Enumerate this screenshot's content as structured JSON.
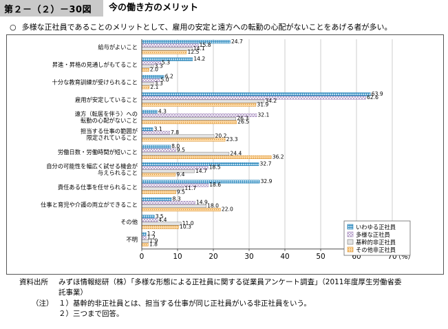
{
  "header": {
    "figure_label": "第２－（２）－30図",
    "title": "今の働き方のメリット"
  },
  "summary": {
    "marker": "○",
    "text": "多様な正社員であることのメリットとして、雇用の安定と遠方への転勤の心配がないことをあげる者が多い。"
  },
  "chart_data": {
    "type": "bar",
    "orientation": "horizontal",
    "categories": [
      [
        "給与がよいこと"
      ],
      [
        "昇進・昇格の見通しがもてること"
      ],
      [
        "十分な教育訓練が受けられること"
      ],
      [
        "雇用が安定していること"
      ],
      [
        "遠方（転居を伴う）への",
        "転勤の心配がないこと"
      ],
      [
        "担当する仕事の範囲が",
        "限定されていること"
      ],
      [
        "労働日数・労働時間が短いこと"
      ],
      [
        "自分の可能性を幅広く試せる機会が",
        "与えられること"
      ],
      [
        "責任ある仕事を任せられること"
      ],
      [
        "仕事と育児や介護の両立ができること"
      ],
      [
        "その他"
      ],
      [
        "不明"
      ]
    ],
    "series": [
      {
        "name": "いわゆる正社員",
        "fill": "#bfe0f2",
        "stroke": "#1e7fb6",
        "pattern": "grid",
        "values": [
          24.7,
          14.2,
          6.2,
          63.9,
          4.3,
          3.1,
          8.0,
          32.7,
          32.9,
          8.3,
          3.5,
          1.2
        ]
      },
      {
        "name": "多様な正社員",
        "fill": "#ffffff",
        "stroke": "#9a7ab5",
        "pattern": "cross",
        "values": [
          15.8,
          5.3,
          5.0,
          62.6,
          32.1,
          7.8,
          9.5,
          18.5,
          18.6,
          14.9,
          4.4,
          1.2
        ]
      },
      {
        "name": "基幹的非正社員",
        "fill": "#e3e3e3",
        "stroke": "#777777",
        "pattern": "plain",
        "values": [
          14.1,
          3.3,
          3.3,
          34.2,
          26.3,
          20.2,
          24.4,
          14.7,
          11.7,
          18.0,
          11.0,
          1.9
        ]
      },
      {
        "name": "その他非正社員",
        "fill": "#fcd9a6",
        "stroke": "#d98a1e",
        "pattern": "dots",
        "values": [
          12.5,
          2.0,
          2.1,
          31.9,
          26.5,
          23.3,
          36.2,
          9.4,
          9.5,
          22.0,
          10.3,
          1.8
        ]
      }
    ],
    "xlim": [
      0,
      70
    ],
    "xticks": [
      0,
      10,
      20,
      30,
      40,
      50,
      60,
      70
    ],
    "xticklabels": [
      "0",
      "10",
      "20",
      "30",
      "40",
      "50",
      "60",
      "70"
    ],
    "xunit": "（%）",
    "legend_position": "bottom-right"
  },
  "footnotes": {
    "source_label": "資料出所",
    "source_line1": "みずほ情報総研（株）「多様な形態による正社員に関する従業員アンケート調査」（2011年度厚生労働省委",
    "source_line2": "託事業）",
    "note_label": "（注）",
    "note1": "１）基幹的非正社員とは、担当する仕事が同じ正社員がいる非正社員をいう。",
    "note2": "２）三つまで回答。"
  }
}
